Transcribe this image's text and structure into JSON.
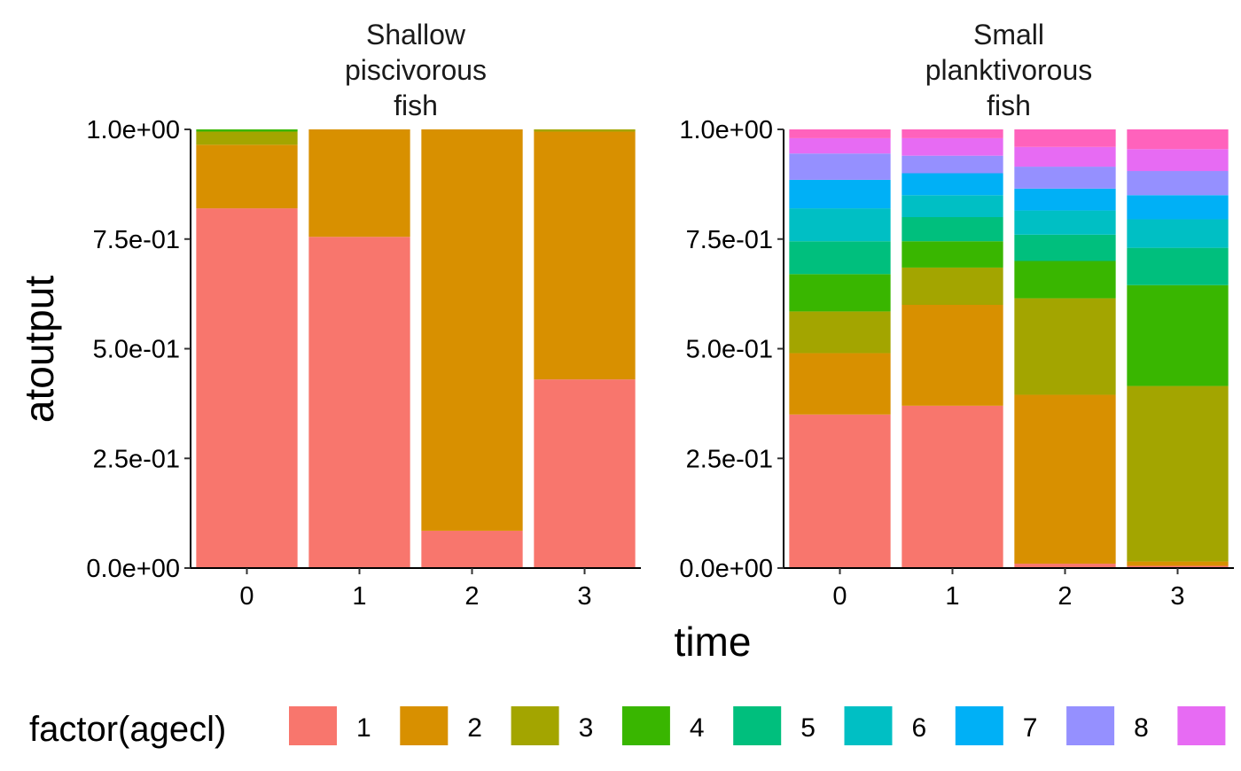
{
  "chart_data": {
    "type": "bar",
    "stacked": true,
    "xlabel": "time",
    "ylabel": "atoutput",
    "ylim": [
      0,
      1
    ],
    "y_ticks": [
      {
        "value": 0,
        "label": "0.0e+00"
      },
      {
        "value": 0.25,
        "label": "2.5e-01"
      },
      {
        "value": 0.5,
        "label": "5.0e-01"
      },
      {
        "value": 0.75,
        "label": "7.5e-01"
      },
      {
        "value": 1,
        "label": "1.0e+00"
      }
    ],
    "categories": [
      "0",
      "1",
      "2",
      "3"
    ],
    "legend": {
      "title": "factor(agecl)",
      "position": "bottom",
      "entries": [
        {
          "label": "1",
          "color": "#F8766D"
        },
        {
          "label": "2",
          "color": "#D89000"
        },
        {
          "label": "3",
          "color": "#A3A500"
        },
        {
          "label": "4",
          "color": "#39B600"
        },
        {
          "label": "5",
          "color": "#00BF7D"
        },
        {
          "label": "6",
          "color": "#00BFC4"
        },
        {
          "label": "7",
          "color": "#00B0F6"
        },
        {
          "label": "8",
          "color": "#9590FF"
        },
        {
          "label": "",
          "color": "#E76BF3"
        }
      ]
    },
    "extra_series_colors": [
      "#FF62BC"
    ],
    "panels": [
      {
        "title": [
          "Shallow",
          "piscivorous",
          "fish"
        ],
        "stacks": [
          [
            0.82,
            0.145,
            0.03,
            0.005
          ],
          [
            0.755,
            0.245
          ],
          [
            0.085,
            0.915
          ],
          [
            0.43,
            0.565,
            0.005
          ]
        ]
      },
      {
        "title": [
          "Small",
          "planktivorous",
          "fish"
        ],
        "stacks": [
          [
            0.35,
            0.14,
            0.095,
            0.085,
            0.075,
            0.075,
            0.065,
            0.06,
            0.035,
            0.02
          ],
          [
            0.37,
            0.23,
            0.085,
            0.06,
            0.055,
            0.05,
            0.05,
            0.04,
            0.04,
            0.02
          ],
          [
            0.01,
            0.385,
            0.22,
            0.085,
            0.06,
            0.055,
            0.05,
            0.05,
            0.045,
            0.04
          ],
          [
            0.005,
            0.01,
            0.4,
            0.23,
            0.085,
            0.065,
            0.055,
            0.055,
            0.05,
            0.045
          ]
        ]
      }
    ]
  }
}
